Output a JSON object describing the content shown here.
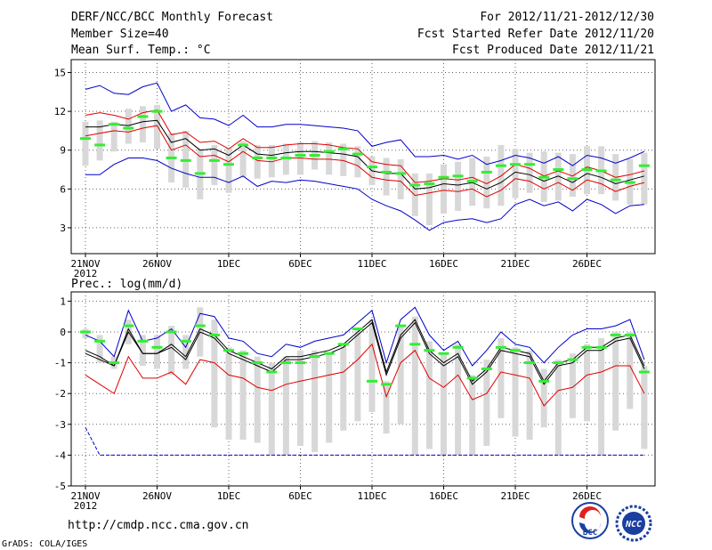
{
  "header": {
    "title": "DERF/NCC/BCC Monthly Forecast",
    "member": "Member Size=40",
    "range": "For 2012/11/21-2012/12/30",
    "started": "Fcst Started Refer Date 2012/11/20",
    "produced": "Fcst Produced Date 2012/11/21"
  },
  "footer": {
    "url": "http://cmdp.ncc.cma.gov.cn",
    "credit": "GrADS: COLA/IGES",
    "logo1_label": "BCC",
    "logo2_label": "NCC"
  },
  "colors": {
    "ensemble_mean": "#000000",
    "spread_red": "#e00000",
    "extreme_blue": "#0000cc",
    "member_box": "#d8d8d8",
    "control_mark": "#33ee33"
  },
  "chart_data": [
    {
      "type": "line",
      "title": "Mean Surf. Temp.: °C",
      "xlabel": "",
      "ylabel": "",
      "ylim": [
        1,
        16
      ],
      "yticks": [
        3,
        6,
        9,
        12,
        15
      ],
      "x": [
        1,
        2,
        3,
        4,
        5,
        6,
        7,
        8,
        9,
        10,
        11,
        12,
        13,
        14,
        15,
        16,
        17,
        18,
        19,
        20,
        21,
        22,
        23,
        24,
        25,
        26,
        27,
        28,
        29,
        30,
        31,
        32,
        33,
        34,
        35,
        36,
        37,
        38,
        39,
        40
      ],
      "xtick_labels": [
        {
          "day": 1,
          "label": "21NOV",
          "sub": "2012"
        },
        {
          "day": 6,
          "label": "26NOV"
        },
        {
          "day": 11,
          "label": "1DEC"
        },
        {
          "day": 16,
          "label": "6DEC"
        },
        {
          "day": 21,
          "label": "11DEC"
        },
        {
          "day": 26,
          "label": "16DEC"
        },
        {
          "day": 31,
          "label": "21DEC"
        },
        {
          "day": 36,
          "label": "26DEC"
        }
      ],
      "series": [
        {
          "name": "max",
          "color": "#0000cc",
          "values": [
            13.7,
            14,
            13.4,
            13.3,
            13.9,
            14.2,
            12,
            12.5,
            11.5,
            11.4,
            10.9,
            11.7,
            10.8,
            10.8,
            11,
            11,
            10.9,
            10.8,
            10.7,
            10.5,
            9.3,
            9.6,
            9.8,
            8.5,
            8.5,
            8.6,
            8.3,
            8.6,
            7.9,
            8.2,
            8.6,
            8.4,
            8,
            8.5,
            7.8,
            8.6,
            8.4,
            8,
            8.4,
            8.9
          ]
        },
        {
          "name": "mean_plus",
          "color": "#e00000",
          "values": [
            11.7,
            11.9,
            11.7,
            11.4,
            11.9,
            12.1,
            10.2,
            10.4,
            9.6,
            9.7,
            9.1,
            9.9,
            9.2,
            9.2,
            9.4,
            9.5,
            9.5,
            9.4,
            9.2,
            9.1,
            8.1,
            7.9,
            7.8,
            6.5,
            6.6,
            6.8,
            6.7,
            6.9,
            6.4,
            7,
            7.9,
            7.6,
            7,
            7.4,
            7,
            7.7,
            7.4,
            6.9,
            7.1,
            7.4
          ]
        },
        {
          "name": "ensemble_mean",
          "color": "#000000",
          "values": [
            10.8,
            10.8,
            11,
            10.9,
            11.2,
            11.3,
            9.6,
            9.9,
            9,
            9.1,
            8.6,
            9.4,
            8.7,
            8.6,
            8.8,
            8.9,
            8.9,
            8.8,
            8.7,
            8.5,
            7.4,
            7.2,
            7.2,
            6,
            6.1,
            6.4,
            6.3,
            6.5,
            6,
            6.5,
            7.3,
            7.1,
            6.6,
            7,
            6.5,
            7.2,
            6.9,
            6.4,
            6.7,
            7
          ]
        },
        {
          "name": "mean_minus",
          "color": "#e00000",
          "values": [
            10.1,
            10.3,
            10.5,
            10.4,
            10.7,
            10.9,
            9,
            9.4,
            8.5,
            8.6,
            8.1,
            8.9,
            8.2,
            8.1,
            8.4,
            8.4,
            8.3,
            8.3,
            8.2,
            7.8,
            6.9,
            6.7,
            6.6,
            5.5,
            5.7,
            5.9,
            5.8,
            6,
            5.4,
            5.9,
            6.8,
            6.6,
            6,
            6.5,
            5.9,
            6.7,
            6.4,
            5.8,
            6.2,
            6.5
          ]
        },
        {
          "name": "min",
          "color": "#0000cc",
          "values": [
            7.1,
            7.1,
            7.9,
            8.4,
            8.4,
            8.2,
            7.6,
            7.2,
            6.9,
            6.9,
            6.5,
            7,
            6.2,
            6.6,
            6.5,
            6.7,
            6.6,
            6.4,
            6.2,
            6,
            5.2,
            4.7,
            4.3,
            3.6,
            2.8,
            3.4,
            3.6,
            3.7,
            3.4,
            3.7,
            4.8,
            5.2,
            4.7,
            5,
            4.3,
            5.2,
            4.8,
            4.1,
            4.7,
            4.8
          ]
        }
      ],
      "member_boxes": [
        {
          "lo": 7.8,
          "hi": 11.2
        },
        {
          "lo": 8.2,
          "hi": 11.3
        },
        {
          "lo": 8.9,
          "hi": 11.2
        },
        {
          "lo": 9.5,
          "hi": 12.2
        },
        {
          "lo": 9.6,
          "hi": 12.4
        },
        {
          "lo": 9.1,
          "hi": 12.5
        },
        {
          "lo": 6.5,
          "hi": 10.3
        },
        {
          "lo": 6.1,
          "hi": 10.5
        },
        {
          "lo": 5.2,
          "hi": 9.1
        },
        {
          "lo": 6.3,
          "hi": 9.4
        },
        {
          "lo": 5.7,
          "hi": 9.2
        },
        {
          "lo": 6.9,
          "hi": 9.7
        },
        {
          "lo": 6.8,
          "hi": 9.4
        },
        {
          "lo": 6.9,
          "hi": 9.4
        },
        {
          "lo": 7.1,
          "hi": 9.5
        },
        {
          "lo": 7.1,
          "hi": 9.6
        },
        {
          "lo": 7.5,
          "hi": 9.7
        },
        {
          "lo": 7.1,
          "hi": 9.6
        },
        {
          "lo": 7,
          "hi": 9.5
        },
        {
          "lo": 6.9,
          "hi": 9.3
        },
        {
          "lo": 6.3,
          "hi": 8.5
        },
        {
          "lo": 5.5,
          "hi": 8.4
        },
        {
          "lo": 5.2,
          "hi": 8.3
        },
        {
          "lo": 3.9,
          "hi": 7.2
        },
        {
          "lo": 3.2,
          "hi": 7.2
        },
        {
          "lo": 4.1,
          "hi": 7.9
        },
        {
          "lo": 4.3,
          "hi": 8.1
        },
        {
          "lo": 4.7,
          "hi": 8.4
        },
        {
          "lo": 4.5,
          "hi": 8.5
        },
        {
          "lo": 4.7,
          "hi": 9.4
        },
        {
          "lo": 5.3,
          "hi": 9.1
        },
        {
          "lo": 5.7,
          "hi": 8.8
        },
        {
          "lo": 5,
          "hi": 8.9
        },
        {
          "lo": 5.1,
          "hi": 8.8
        },
        {
          "lo": 5.4,
          "hi": 8.7
        },
        {
          "lo": 5.6,
          "hi": 9.3
        },
        {
          "lo": 5.6,
          "hi": 9.3
        },
        {
          "lo": 5.1,
          "hi": 8.7
        },
        {
          "lo": 4.8,
          "hi": 8.3
        },
        {
          "lo": 4.8,
          "hi": 8.8
        }
      ],
      "control": [
        9.9,
        9.4,
        11,
        10.7,
        11.6,
        12,
        8.4,
        8.2,
        7.2,
        8.2,
        7.9,
        9.4,
        8.4,
        8.4,
        8.4,
        8.6,
        8.6,
        8.9,
        9.1,
        8.7,
        7.7,
        7.3,
        7.2,
        6.3,
        6.4,
        6.9,
        7,
        6.6,
        7.3,
        7.8,
        7.9,
        7.9,
        6.9,
        7.5,
        6.8,
        7.5,
        7.4,
        6.7,
        6.5,
        7.8
      ]
    },
    {
      "type": "line",
      "title": "Prec.: log(mm/d)",
      "xlabel": "",
      "ylabel": "",
      "ylim": [
        -5,
        1.3
      ],
      "yticks": [
        -5,
        -4,
        -3,
        -2,
        -1,
        0,
        1
      ],
      "x": [
        1,
        2,
        3,
        4,
        5,
        6,
        7,
        8,
        9,
        10,
        11,
        12,
        13,
        14,
        15,
        16,
        17,
        18,
        19,
        20,
        21,
        22,
        23,
        24,
        25,
        26,
        27,
        28,
        29,
        30,
        31,
        32,
        33,
        34,
        35,
        36,
        37,
        38,
        39,
        40
      ],
      "xtick_labels": [
        {
          "day": 1,
          "label": "21NOV",
          "sub": "2012"
        },
        {
          "day": 6,
          "label": "26NOV"
        },
        {
          "day": 11,
          "label": "1DEC"
        },
        {
          "day": 16,
          "label": "6DEC"
        },
        {
          "day": 21,
          "label": "11DEC"
        },
        {
          "day": 26,
          "label": "16DEC"
        },
        {
          "day": 31,
          "label": "21DEC"
        },
        {
          "day": 36,
          "label": "26DEC"
        }
      ],
      "series": [
        {
          "name": "max",
          "color": "#0000cc",
          "values": [
            -0.1,
            -0.3,
            -0.8,
            0.7,
            -0.3,
            -0.2,
            0.1,
            -0.5,
            0.6,
            0.5,
            -0.2,
            -0.3,
            -0.7,
            -0.8,
            -0.4,
            -0.5,
            -0.3,
            -0.2,
            -0.1,
            0.3,
            0.7,
            -1,
            0.4,
            0.8,
            -0.1,
            -0.6,
            -0.3,
            -1.1,
            -0.6,
            0,
            -0.4,
            -0.5,
            -1,
            -0.5,
            -0.1,
            0.1,
            0.1,
            0.2,
            0.4,
            -0.9
          ]
        },
        {
          "name": "mean_plus",
          "color": "#000000",
          "values": [
            -0.6,
            -0.8,
            -1.1,
            0.1,
            -0.7,
            -0.7,
            -0.4,
            -0.8,
            0.1,
            -0.1,
            -0.6,
            -0.8,
            -1,
            -1.2,
            -0.8,
            -0.8,
            -0.7,
            -0.6,
            -0.4,
            0,
            0.4,
            -1.3,
            -0.1,
            0.4,
            -0.6,
            -1,
            -0.7,
            -1.6,
            -1.2,
            -0.5,
            -0.6,
            -0.7,
            -1.6,
            -1,
            -0.9,
            -0.5,
            -0.5,
            -0.2,
            -0.1,
            -1.1
          ]
        },
        {
          "name": "ensemble_mean",
          "color": "#000000",
          "values": [
            -0.7,
            -0.9,
            -1.1,
            0,
            -0.7,
            -0.7,
            -0.5,
            -0.9,
            0,
            -0.2,
            -0.7,
            -0.9,
            -1.1,
            -1.3,
            -0.9,
            -0.9,
            -0.8,
            -0.7,
            -0.5,
            -0.1,
            0.3,
            -1.4,
            -0.2,
            0.3,
            -0.7,
            -1.1,
            -0.8,
            -1.7,
            -1.3,
            -0.6,
            -0.7,
            -0.8,
            -1.7,
            -1.1,
            -1,
            -0.6,
            -0.6,
            -0.3,
            -0.2,
            -1.2
          ]
        },
        {
          "name": "mean_minus",
          "color": "#e00000",
          "values": [
            -1.4,
            -1.7,
            -2,
            -0.8,
            -1.5,
            -1.5,
            -1.3,
            -1.7,
            -0.9,
            -1,
            -1.4,
            -1.5,
            -1.8,
            -1.9,
            -1.7,
            -1.6,
            -1.5,
            -1.4,
            -1.3,
            -0.9,
            -0.4,
            -2.1,
            -1,
            -0.6,
            -1.5,
            -1.8,
            -1.4,
            -2.2,
            -2,
            -1.3,
            -1.4,
            -1.5,
            -2.4,
            -1.9,
            -1.8,
            -1.4,
            -1.3,
            -1.1,
            -1.1,
            -2
          ]
        },
        {
          "name": "min",
          "color": "#0000cc",
          "values": [
            -3.1,
            -4,
            -4,
            -4,
            -4,
            -4,
            -4,
            -4,
            -4,
            -4,
            -4,
            -4,
            -4,
            -4,
            -4,
            -4,
            -4,
            -4,
            -4,
            -4,
            -4,
            -4,
            -4,
            -4,
            -4,
            -4,
            -4,
            -4,
            -4,
            -4,
            -4,
            -4,
            -4,
            -4,
            -4,
            -4,
            -4,
            -4,
            -4,
            -4
          ]
        }
      ],
      "member_boxes": [
        {
          "lo": -0.2,
          "hi": 0.1
        },
        {
          "lo": -1,
          "hi": -0.1
        },
        {
          "lo": -1.2,
          "hi": -0.8
        },
        {
          "lo": -0.4,
          "hi": 0.4
        },
        {
          "lo": -1.1,
          "hi": -0.1
        },
        {
          "lo": -1.2,
          "hi": -0.1
        },
        {
          "lo": -1.4,
          "hi": 0.2
        },
        {
          "lo": -1.2,
          "hi": -0.1
        },
        {
          "lo": -0.8,
          "hi": 0.8
        },
        {
          "lo": -3.1,
          "hi": 0.4
        },
        {
          "lo": -3.5,
          "hi": -0.5
        },
        {
          "lo": -3.5,
          "hi": -0.6
        },
        {
          "lo": -3.6,
          "hi": -0.8
        },
        {
          "lo": -4,
          "hi": -1
        },
        {
          "lo": -4,
          "hi": -0.8
        },
        {
          "lo": -3.7,
          "hi": -0.6
        },
        {
          "lo": -3.9,
          "hi": -0.6
        },
        {
          "lo": -3.6,
          "hi": -0.7
        },
        {
          "lo": -3.2,
          "hi": -0.4
        },
        {
          "lo": -2.9,
          "hi": 0.1
        },
        {
          "lo": -2.6,
          "hi": 0.4
        },
        {
          "lo": -3.3,
          "hi": -1.6
        },
        {
          "lo": -3,
          "hi": 0.2
        },
        {
          "lo": -4,
          "hi": 0.5
        },
        {
          "lo": -3.8,
          "hi": -0.3
        },
        {
          "lo": -4,
          "hi": -0.7
        },
        {
          "lo": -4,
          "hi": -0.4
        },
        {
          "lo": -4,
          "hi": -1.4
        },
        {
          "lo": -3.7,
          "hi": -0.9
        },
        {
          "lo": -2.8,
          "hi": -0.2
        },
        {
          "lo": -3.4,
          "hi": -0.5
        },
        {
          "lo": -3.5,
          "hi": -0.6
        },
        {
          "lo": -3.1,
          "hi": -1.2
        },
        {
          "lo": -4,
          "hi": -0.9
        },
        {
          "lo": -2.8,
          "hi": -0.7
        },
        {
          "lo": -2.9,
          "hi": -0.4
        },
        {
          "lo": -4,
          "hi": -0.2
        },
        {
          "lo": -3.2,
          "hi": 0
        },
        {
          "lo": -2.5,
          "hi": 0
        },
        {
          "lo": -3.8,
          "hi": -1.1
        }
      ],
      "control": [
        0,
        -0.3,
        -1,
        0.2,
        -0.3,
        -0.5,
        0,
        -0.3,
        0.2,
        -0.1,
        -0.6,
        -0.7,
        -1,
        -1.3,
        -1,
        -1,
        -0.8,
        -0.7,
        -0.4,
        0.1,
        -1.6,
        -1.7,
        0.2,
        -0.4,
        -0.6,
        -0.7,
        -0.5,
        -1.5,
        -1.2,
        -0.5,
        -0.6,
        -1,
        -1.6,
        -1,
        -0.9,
        -0.5,
        -0.5,
        -0.1,
        -0.1,
        -1.3
      ]
    }
  ]
}
